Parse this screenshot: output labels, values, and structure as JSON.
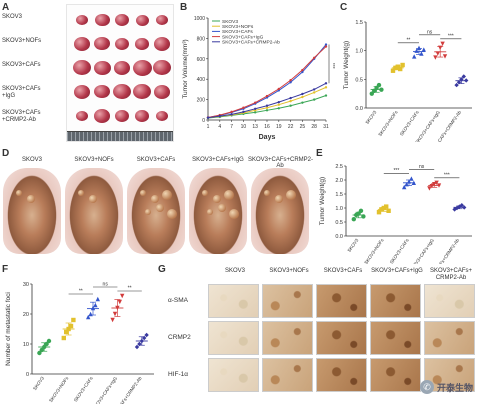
{
  "panel_labels": {
    "a": "A",
    "b": "B",
    "c": "C",
    "d": "D",
    "e": "E",
    "f": "F",
    "g": "G"
  },
  "panel_a": {
    "rows": [
      "SKOV3",
      "SKOV3+NOFs",
      "SKOV3+CAFs",
      "SKOV3+CAFs\n+IgG",
      "SKOV3+CAFs\n+CRMP2-Ab"
    ],
    "tumor_size_rank": [
      0.5,
      0.7,
      1.0,
      0.95,
      0.6
    ]
  },
  "panel_d": {
    "groups": [
      "SKOV3",
      "SKOV3+NOFs",
      "SKOV3+CAFs",
      "SKOV3+CAFs+IgG",
      "SKOV3+CAFs+CRMP2-Ab"
    ]
  },
  "panel_g": {
    "columns": [
      "SKOV3",
      "SKOV3+NOFs",
      "SKOV3+CAFs",
      "SKOV3+CAFs+IgG",
      "SKOV3+CAFs+\nCRMP2-Ab"
    ],
    "rows": [
      "α-SMA",
      "CRMP2",
      "HIF-1α"
    ],
    "stain_level": [
      [
        "light",
        "med",
        "dark",
        "dark",
        "light"
      ],
      [
        "light",
        "med",
        "dark",
        "dark",
        "med"
      ],
      [
        "light",
        "med",
        "dark",
        "dark",
        "med"
      ]
    ]
  },
  "watermark": {
    "text": "开泰生物",
    "icon": "wechat-icon"
  },
  "chart_data": [
    {
      "id": "B",
      "type": "line",
      "xlabel": "Days",
      "ylabel": "Tumor Volume(mm³)",
      "x": [
        1,
        4,
        7,
        10,
        13,
        16,
        19,
        22,
        25,
        28,
        31
      ],
      "xlim": [
        1,
        31
      ],
      "ylim": [
        0,
        1000
      ],
      "yticks": [
        0,
        200,
        400,
        600,
        800,
        1000
      ],
      "legend_position": "top-left",
      "series": [
        {
          "name": "SKOV3",
          "color": "#3aa655",
          "values": [
            20,
            30,
            45,
            60,
            75,
            95,
            115,
            140,
            170,
            200,
            240
          ]
        },
        {
          "name": "SKOV3+NOFs",
          "color": "#e2c12d",
          "values": [
            22,
            35,
            50,
            70,
            95,
            120,
            150,
            185,
            225,
            270,
            320
          ]
        },
        {
          "name": "SKOV3+CAFs",
          "color": "#3355cc",
          "values": [
            25,
            45,
            75,
            110,
            160,
            220,
            290,
            370,
            470,
            600,
            740
          ]
        },
        {
          "name": "SKOV3+CAFs+IgG",
          "color": "#d23c3c",
          "values": [
            25,
            48,
            80,
            120,
            170,
            235,
            305,
            390,
            490,
            610,
            720
          ]
        },
        {
          "name": "SKOV3+CAFs+CRMP2-Ab",
          "color": "#3a3aa0",
          "values": [
            22,
            38,
            55,
            80,
            110,
            140,
            175,
            215,
            255,
            300,
            360
          ]
        }
      ],
      "annotation": "***"
    },
    {
      "id": "C",
      "type": "scatter",
      "ylabel": "Tumor Weight(g)",
      "categories": [
        "SKOV3",
        "SKOV3+NOFs",
        "SKOV3+CAFs",
        "SKOV3+CAFs+IgG",
        "SKOV3+CAFs+CRMP2-Ab"
      ],
      "ylim": [
        0,
        1.5
      ],
      "yticks": [
        0.0,
        0.5,
        1.0,
        1.5
      ],
      "colors": [
        "#3aa655",
        "#e2c12d",
        "#3355cc",
        "#d23c3c",
        "#3a3aa0"
      ],
      "markers": [
        "circle",
        "square",
        "triangle",
        "triangle-down",
        "diamond"
      ],
      "points": [
        [
          0.25,
          0.3,
          0.35,
          0.4,
          0.32
        ],
        [
          0.65,
          0.7,
          0.72,
          0.68,
          0.75
        ],
        [
          0.9,
          1.0,
          1.05,
          0.95,
          1.02
        ],
        [
          0.88,
          0.95,
          1.05,
          1.12,
          0.9
        ],
        [
          0.4,
          0.45,
          0.5,
          0.55,
          0.48
        ]
      ],
      "significance": [
        {
          "from": 1,
          "to": 2,
          "label": "**"
        },
        {
          "from": 2,
          "to": 3,
          "label": "ns"
        },
        {
          "from": 3,
          "to": 4,
          "label": "***"
        }
      ]
    },
    {
      "id": "E",
      "type": "scatter",
      "ylabel": "Tumor Weight(g)",
      "categories": [
        "SKOV3",
        "SKOV3+NOFs",
        "SKOV3+CAFs",
        "SKOV3+CAFs+IgG",
        "SKOV3+CAFs+CRMP2-Ab"
      ],
      "ylim": [
        0,
        2.5
      ],
      "yticks": [
        0.0,
        0.5,
        1.0,
        1.5,
        2.0,
        2.5
      ],
      "colors": [
        "#3aa655",
        "#e2c12d",
        "#3355cc",
        "#d23c3c",
        "#3a3aa0"
      ],
      "markers": [
        "circle",
        "square",
        "triangle",
        "triangle-down",
        "diamond"
      ],
      "points": [
        [
          0.6,
          0.75,
          0.8,
          0.9,
          0.7
        ],
        [
          0.85,
          0.95,
          1.0,
          1.05,
          0.9
        ],
        [
          1.75,
          1.85,
          1.95,
          2.05,
          1.9
        ],
        [
          1.7,
          1.78,
          1.85,
          1.9,
          1.8
        ],
        [
          0.95,
          1.0,
          1.05,
          1.1,
          1.02
        ]
      ],
      "significance": [
        {
          "from": 1,
          "to": 2,
          "label": "***"
        },
        {
          "from": 2,
          "to": 3,
          "label": "ns"
        },
        {
          "from": 3,
          "to": 4,
          "label": "***"
        }
      ]
    },
    {
      "id": "F",
      "type": "scatter",
      "ylabel": "Number of metastatic foci",
      "categories": [
        "SKOV3",
        "SKOV3+NOFs",
        "SKOV3+CAFs",
        "SKOV3+CAFs+IgG",
        "SKOV3+CAFs+CRMP2-Ab"
      ],
      "ylim": [
        0,
        30
      ],
      "yticks": [
        0,
        10,
        20,
        30
      ],
      "colors": [
        "#3aa655",
        "#e2c12d",
        "#3355cc",
        "#d23c3c",
        "#3a3aa0"
      ],
      "markers": [
        "circle",
        "square",
        "triangle",
        "triangle-down",
        "diamond"
      ],
      "points": [
        [
          7,
          8,
          9,
          10,
          11
        ],
        [
          12,
          14,
          15,
          16,
          18
        ],
        [
          19,
          20,
          22,
          23,
          25
        ],
        [
          18,
          20,
          22,
          24,
          26
        ],
        [
          9,
          10,
          11,
          12,
          13
        ]
      ],
      "significance": [
        {
          "from": 1,
          "to": 2,
          "label": "**"
        },
        {
          "from": 2,
          "to": 3,
          "label": "ns"
        },
        {
          "from": 3,
          "to": 4,
          "label": "**"
        }
      ]
    }
  ]
}
